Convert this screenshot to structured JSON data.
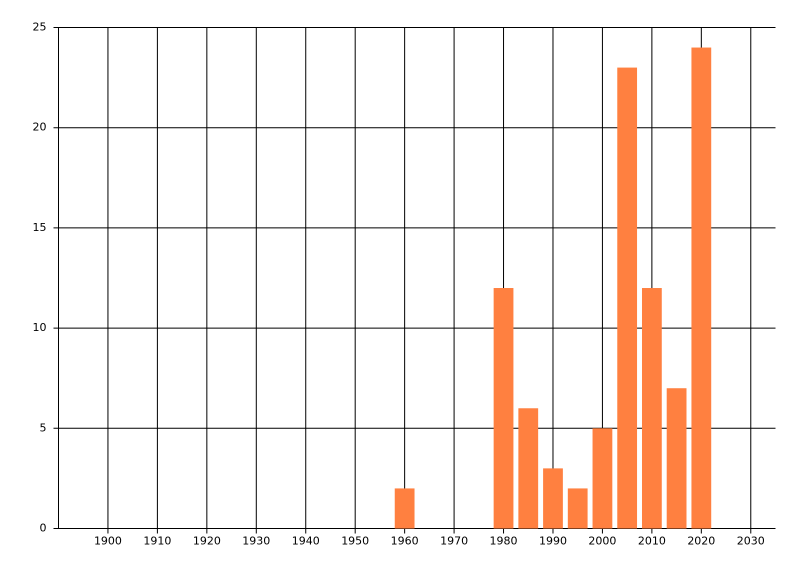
{
  "chart_data": {
    "type": "bar",
    "x": [
      1960,
      1980,
      1985,
      1990,
      1995,
      2000,
      2005,
      2010,
      2015,
      2020
    ],
    "values": [
      2,
      12,
      6,
      3,
      2,
      5,
      23,
      12,
      7,
      24
    ],
    "color": "#ff8040",
    "xlim": [
      1890,
      2035
    ],
    "xticks": [
      1900,
      1910,
      1920,
      1930,
      1940,
      1950,
      1960,
      1970,
      1980,
      1990,
      2000,
      2010,
      2020,
      2030
    ],
    "ylim": [
      0,
      25
    ],
    "yticks": [
      0,
      5,
      10,
      15,
      20,
      25
    ],
    "grid": true
  }
}
